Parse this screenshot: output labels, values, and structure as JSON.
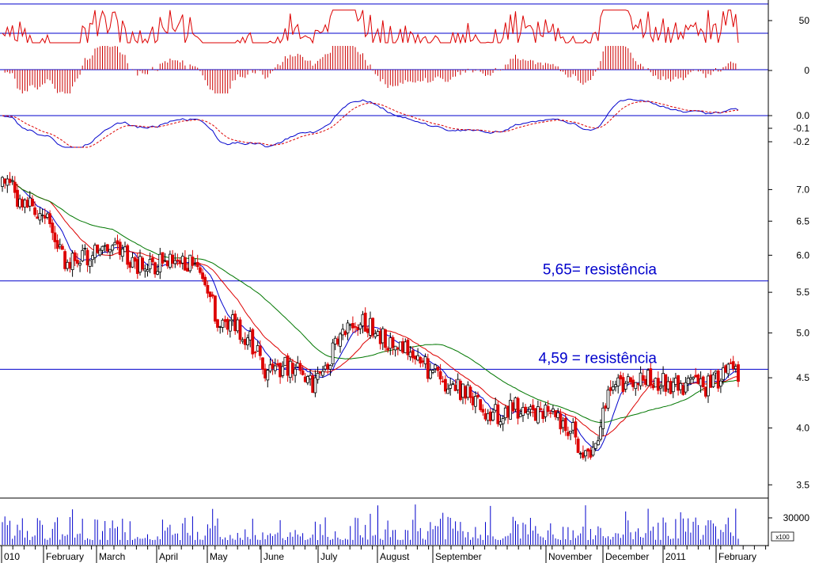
{
  "chart_data": {
    "type": "candlestick",
    "title": "",
    "x_months": [
      "010",
      "February",
      "March",
      "April",
      "May",
      "June",
      "July",
      "August",
      "September",
      "November",
      "December",
      "2011",
      "February"
    ],
    "price_panel": {
      "scale": "log",
      "ylim": [
        3.45,
        7.15
      ],
      "y_ticks": [
        "7.0",
        "6.5",
        "6.0",
        "5.5",
        "5.0",
        "4.5",
        "4.0",
        "3.5"
      ],
      "anchors": [
        [
          "2010-01-04",
          7.08
        ],
        [
          "2010-01-18",
          6.75
        ],
        [
          "2010-02-01",
          6.35
        ],
        [
          "2010-02-08",
          5.85
        ],
        [
          "2010-02-22",
          6.0
        ],
        [
          "2010-03-08",
          6.05
        ],
        [
          "2010-03-22",
          5.85
        ],
        [
          "2010-04-05",
          5.9
        ],
        [
          "2010-04-19",
          5.9
        ],
        [
          "2010-05-03",
          5.2
        ],
        [
          "2010-05-17",
          5.05
        ],
        [
          "2010-05-31",
          4.58
        ],
        [
          "2010-06-14",
          4.62
        ],
        [
          "2010-06-25",
          4.45
        ],
        [
          "2010-07-05",
          4.68
        ],
        [
          "2010-07-12",
          5.02
        ],
        [
          "2010-07-26",
          5.12
        ],
        [
          "2010-08-09",
          4.85
        ],
        [
          "2010-08-23",
          4.72
        ],
        [
          "2010-09-06",
          4.45
        ],
        [
          "2010-09-20",
          4.35
        ],
        [
          "2010-10-04",
          4.12
        ],
        [
          "2010-10-18",
          4.2
        ],
        [
          "2010-11-01",
          4.15
        ],
        [
          "2010-11-15",
          4.05
        ],
        [
          "2010-11-22",
          3.85
        ],
        [
          "2010-11-29",
          3.72
        ],
        [
          "2010-12-08",
          4.3
        ],
        [
          "2010-12-20",
          4.48
        ],
        [
          "2011-01-03",
          4.47
        ],
        [
          "2011-01-17",
          4.43
        ],
        [
          "2011-01-31",
          4.4
        ],
        [
          "2011-02-14",
          4.55
        ]
      ],
      "moving_averages": [
        {
          "color": "#0000cc",
          "period": 9
        },
        {
          "color": "#dd0000",
          "period": 20
        },
        {
          "color": "#007700",
          "period": 45
        }
      ],
      "candle_up_color": "#000000",
      "candle_down_color": "#dd0000"
    },
    "support_resistance": [
      {
        "value": 5.65,
        "label": "5,65= resistência"
      },
      {
        "value": 4.59,
        "label": "4,59 = resistência"
      }
    ],
    "rsi_panel": {
      "y_tick": "50",
      "guide_levels": [
        70,
        30
      ],
      "line_color": "#dd0000"
    },
    "histogram_panel": {
      "y_tick": "0",
      "bar_color": "#cc0000"
    },
    "macd_panel": {
      "y_ticks": [
        "0.0",
        "-0.1",
        "-0.2"
      ],
      "macd_color": "#0000cc",
      "signal_color": "#dd0000"
    },
    "volume_panel": {
      "y_tick": "30000",
      "unit_label": "x100",
      "bar_color": "#0000cc"
    },
    "grid": false
  }
}
